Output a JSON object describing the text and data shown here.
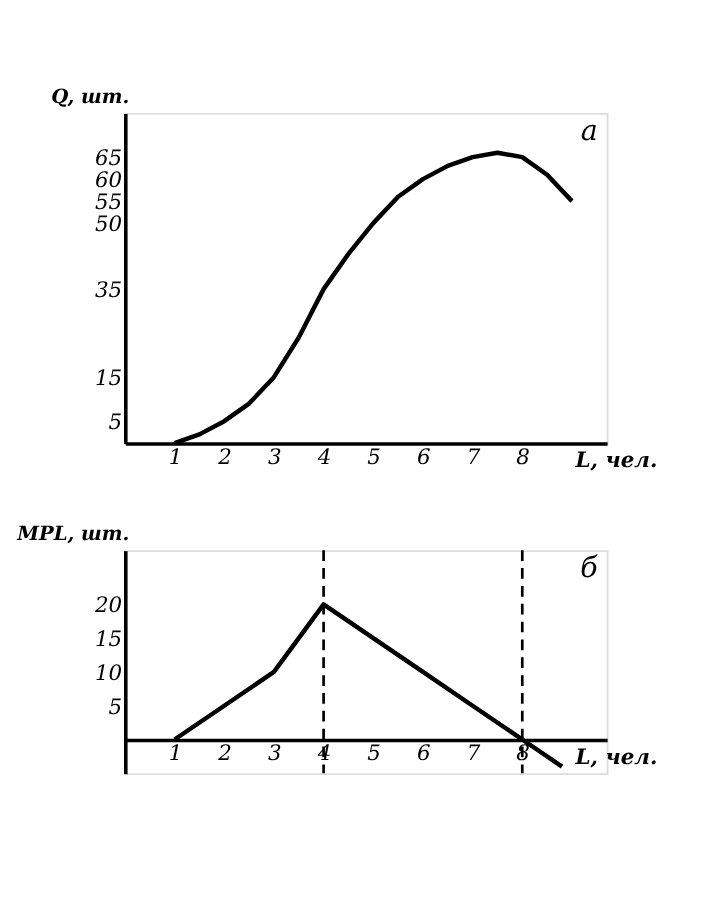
{
  "chart_data": [
    {
      "type": "line",
      "x": [
        1,
        1.5,
        2,
        2.5,
        3,
        3.5,
        4,
        4.5,
        5,
        5.5,
        6,
        6.5,
        7,
        7.5,
        8,
        8.5,
        9
      ],
      "values": [
        0,
        2,
        5,
        9,
        15,
        24,
        35,
        43,
        50,
        56,
        60,
        63,
        65,
        66,
        65,
        61,
        55
      ],
      "color": "#000000",
      "xlim": [
        0,
        9.7
      ],
      "xticks": [
        1,
        2,
        3,
        4,
        5,
        6,
        7,
        8
      ],
      "ylim": [
        0,
        75
      ],
      "yticks": [
        5,
        15,
        35,
        50,
        55,
        60,
        65
      ],
      "xlabel": "L, чел.",
      "ylabel": "Q, шт.",
      "annotations": [
        "а"
      ],
      "grid": false,
      "legend": false,
      "marker": "none",
      "line_style": "solid"
    },
    {
      "type": "line",
      "x": [
        1,
        2,
        3,
        4,
        5,
        6,
        7,
        8,
        8.8
      ],
      "values": [
        0,
        5,
        10,
        20,
        15,
        10,
        5,
        0,
        -4
      ],
      "color": "#000000",
      "xlim": [
        0,
        9.7
      ],
      "xticks": [
        1,
        2,
        3,
        4,
        5,
        6,
        7,
        8
      ],
      "ylim": [
        -5,
        28
      ],
      "yticks": [
        5,
        10,
        15,
        20
      ],
      "xlabel": "L, чел.",
      "ylabel": "MPL, шт.",
      "annotations": [
        "б"
      ],
      "grid": false,
      "legend": false,
      "marker": "none",
      "line_style": "solid",
      "ref_lines": [
        {
          "axis": "x",
          "value": 4,
          "line_style": "dashed"
        },
        {
          "axis": "x",
          "value": 8,
          "line_style": "dashed"
        }
      ]
    }
  ]
}
